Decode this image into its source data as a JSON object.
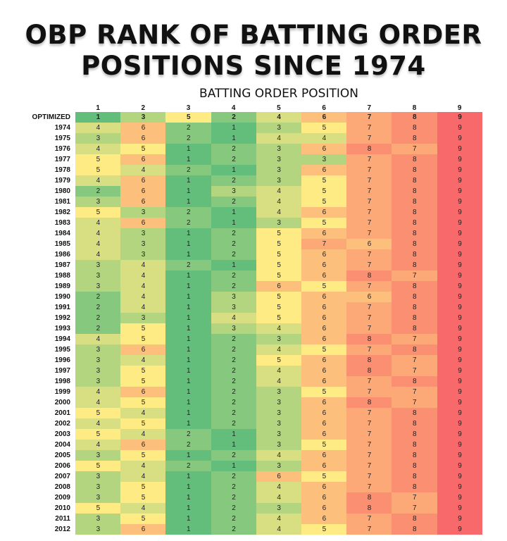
{
  "page": {
    "title_lines": [
      "OBP RANK OF BATTING ORDER",
      "POSITIONS SINCE 1974"
    ],
    "subtitle": "BATTING ORDER POSITION"
  },
  "colors": {
    "rank_1": "#63be7b",
    "rank_2": "#86c87d",
    "rank_3": "#b3d580",
    "rank_4": "#d8df82",
    "rank_5": "#ffeb84",
    "rank_6": "#fdc07c",
    "rank_7": "#fca977",
    "rank_8": "#fb8f72",
    "rank_9": "#f8696b"
  },
  "chart_data": {
    "type": "table",
    "title": "OBP RANK OF BATTING ORDER POSITIONS SINCE 1974",
    "subtitle": "BATTING ORDER POSITION",
    "columns": [
      "1",
      "2",
      "3",
      "4",
      "5",
      "6",
      "7",
      "8",
      "9"
    ],
    "rows": [
      {
        "label": "OPTIMIZED",
        "values": [
          1,
          3,
          5,
          2,
          4,
          6,
          7,
          8,
          9
        ]
      },
      {
        "label": "1974",
        "values": [
          4,
          6,
          2,
          1,
          3,
          5,
          7,
          8,
          9
        ]
      },
      {
        "label": "1975",
        "values": [
          3,
          6,
          2,
          1,
          4,
          4,
          7,
          8,
          9
        ]
      },
      {
        "label": "1976",
        "values": [
          4,
          5,
          1,
          2,
          3,
          6,
          8,
          7,
          9
        ]
      },
      {
        "label": "1977",
        "values": [
          5,
          6,
          1,
          2,
          3,
          3,
          7,
          8,
          9
        ]
      },
      {
        "label": "1978",
        "values": [
          5,
          4,
          2,
          1,
          3,
          6,
          7,
          8,
          9
        ]
      },
      {
        "label": "1979",
        "values": [
          4,
          6,
          1,
          2,
          3,
          5,
          7,
          8,
          9
        ]
      },
      {
        "label": "1980",
        "values": [
          2,
          6,
          1,
          3,
          4,
          5,
          7,
          8,
          9
        ]
      },
      {
        "label": "1981",
        "values": [
          3,
          6,
          1,
          2,
          4,
          5,
          7,
          8,
          9
        ]
      },
      {
        "label": "1982",
        "values": [
          5,
          3,
          2,
          1,
          4,
          6,
          7,
          8,
          9
        ]
      },
      {
        "label": "1983",
        "values": [
          4,
          6,
          2,
          1,
          3,
          5,
          7,
          8,
          9
        ]
      },
      {
        "label": "1984",
        "values": [
          4,
          3,
          1,
          2,
          5,
          6,
          7,
          8,
          9
        ]
      },
      {
        "label": "1985",
        "values": [
          4,
          3,
          1,
          2,
          5,
          7,
          6,
          8,
          9
        ]
      },
      {
        "label": "1986",
        "values": [
          4,
          3,
          1,
          2,
          5,
          6,
          7,
          8,
          9
        ]
      },
      {
        "label": "1987",
        "values": [
          3,
          4,
          2,
          1,
          5,
          6,
          7,
          8,
          9
        ]
      },
      {
        "label": "1988",
        "values": [
          3,
          4,
          1,
          2,
          5,
          6,
          8,
          7,
          9
        ]
      },
      {
        "label": "1989",
        "values": [
          3,
          4,
          1,
          2,
          6,
          5,
          7,
          8,
          9
        ]
      },
      {
        "label": "1990",
        "values": [
          2,
          4,
          1,
          3,
          5,
          6,
          6,
          8,
          9
        ]
      },
      {
        "label": "1991",
        "values": [
          2,
          4,
          1,
          3,
          5,
          6,
          7,
          8,
          9
        ]
      },
      {
        "label": "1992",
        "values": [
          2,
          3,
          1,
          4,
          5,
          6,
          7,
          8,
          9
        ]
      },
      {
        "label": "1993",
        "values": [
          2,
          5,
          1,
          3,
          4,
          6,
          7,
          8,
          9
        ]
      },
      {
        "label": "1994",
        "values": [
          4,
          5,
          1,
          2,
          3,
          6,
          8,
          7,
          9
        ]
      },
      {
        "label": "1995",
        "values": [
          3,
          6,
          1,
          2,
          4,
          5,
          7,
          8,
          9
        ]
      },
      {
        "label": "1996",
        "values": [
          3,
          4,
          1,
          2,
          5,
          6,
          8,
          7,
          9
        ]
      },
      {
        "label": "1997",
        "values": [
          3,
          5,
          1,
          2,
          4,
          6,
          8,
          7,
          9
        ]
      },
      {
        "label": "1998",
        "values": [
          3,
          5,
          1,
          2,
          4,
          6,
          7,
          8,
          9
        ]
      },
      {
        "label": "1999",
        "values": [
          4,
          6,
          1,
          2,
          3,
          5,
          7,
          7,
          9
        ]
      },
      {
        "label": "2000",
        "values": [
          4,
          5,
          1,
          2,
          3,
          6,
          8,
          7,
          9
        ]
      },
      {
        "label": "2001",
        "values": [
          5,
          4,
          1,
          2,
          3,
          6,
          7,
          8,
          9
        ]
      },
      {
        "label": "2002",
        "values": [
          4,
          5,
          1,
          2,
          3,
          6,
          7,
          8,
          9
        ]
      },
      {
        "label": "2003",
        "values": [
          5,
          4,
          2,
          1,
          3,
          6,
          7,
          8,
          9
        ]
      },
      {
        "label": "2004",
        "values": [
          4,
          6,
          2,
          1,
          3,
          5,
          7,
          8,
          9
        ]
      },
      {
        "label": "2005",
        "values": [
          3,
          5,
          1,
          2,
          4,
          6,
          7,
          8,
          9
        ]
      },
      {
        "label": "2006",
        "values": [
          5,
          4,
          2,
          1,
          3,
          6,
          7,
          8,
          9
        ]
      },
      {
        "label": "2007",
        "values": [
          3,
          4,
          1,
          2,
          6,
          5,
          7,
          8,
          9
        ]
      },
      {
        "label": "2008",
        "values": [
          3,
          5,
          1,
          2,
          4,
          6,
          7,
          8,
          9
        ]
      },
      {
        "label": "2009",
        "values": [
          3,
          5,
          1,
          2,
          4,
          6,
          8,
          7,
          9
        ]
      },
      {
        "label": "2010",
        "values": [
          5,
          4,
          1,
          2,
          3,
          6,
          8,
          7,
          9
        ]
      },
      {
        "label": "2011",
        "values": [
          3,
          5,
          1,
          2,
          4,
          6,
          7,
          8,
          9
        ]
      },
      {
        "label": "2012",
        "values": [
          3,
          6,
          1,
          2,
          4,
          5,
          7,
          8,
          9
        ]
      }
    ]
  }
}
